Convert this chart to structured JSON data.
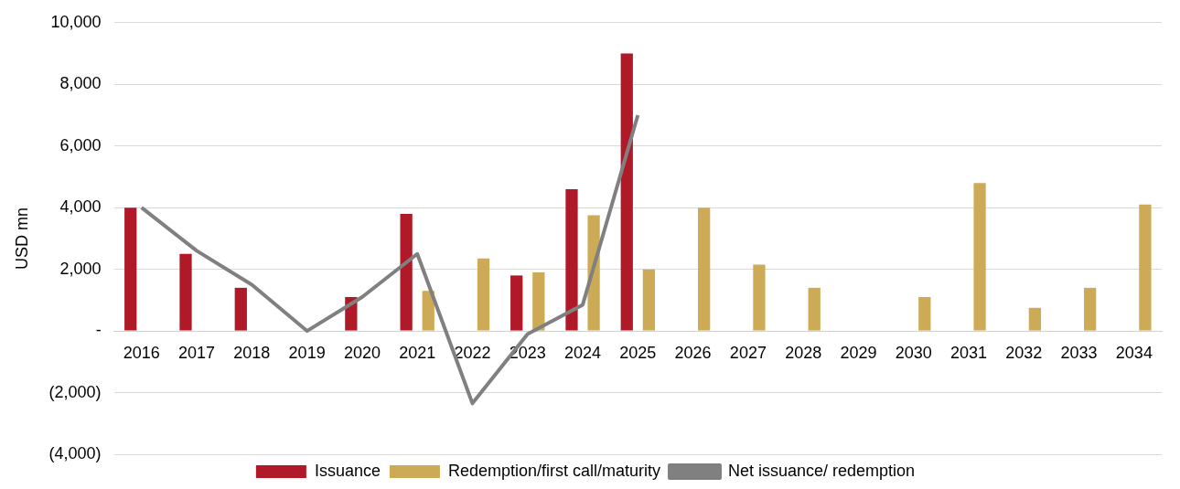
{
  "chart_data": {
    "type": "bar",
    "ylabel": "USD mn",
    "categories": [
      "2016",
      "2017",
      "2018",
      "2019",
      "2020",
      "2021",
      "2022",
      "2023",
      "2024",
      "2025",
      "2026",
      "2027",
      "2028",
      "2029",
      "2030",
      "2031",
      "2032",
      "2033",
      "2034"
    ],
    "series": [
      {
        "name": "Issuance",
        "color": "#b01a28",
        "values": [
          4000,
          2500,
          1400,
          null,
          1100,
          3800,
          null,
          1800,
          4600,
          9000,
          null,
          null,
          null,
          null,
          null,
          null,
          null,
          null,
          null
        ]
      },
      {
        "name": "Redemption/first call/maturity",
        "color": "#cdaa56",
        "values": [
          null,
          null,
          null,
          null,
          null,
          1300,
          2350,
          1900,
          3750,
          2000,
          4000,
          2150,
          1400,
          null,
          1100,
          4800,
          750,
          1400,
          4100
        ]
      },
      {
        "name": "Net issuance/ redemption",
        "type": "line",
        "color": "#808080",
        "values": [
          4000,
          2600,
          1500,
          0,
          1100,
          2500,
          -2350,
          -100,
          850,
          7000,
          null,
          null,
          null,
          null,
          null,
          null,
          null,
          null,
          null
        ]
      }
    ],
    "ylim": [
      -4000,
      10000
    ],
    "yticks": [
      {
        "value": -4000,
        "label": "(4,000)"
      },
      {
        "value": -2000,
        "label": "(2,000)"
      },
      {
        "value": 0,
        "label": "-"
      },
      {
        "value": 2000,
        "label": "2,000"
      },
      {
        "value": 4000,
        "label": "4,000"
      },
      {
        "value": 6000,
        "label": "6,000"
      },
      {
        "value": 8000,
        "label": "8,000"
      },
      {
        "value": 10000,
        "label": "10,000"
      }
    ],
    "grid": "y",
    "legend": "bottom",
    "marker": "none",
    "line_style": "solid"
  }
}
